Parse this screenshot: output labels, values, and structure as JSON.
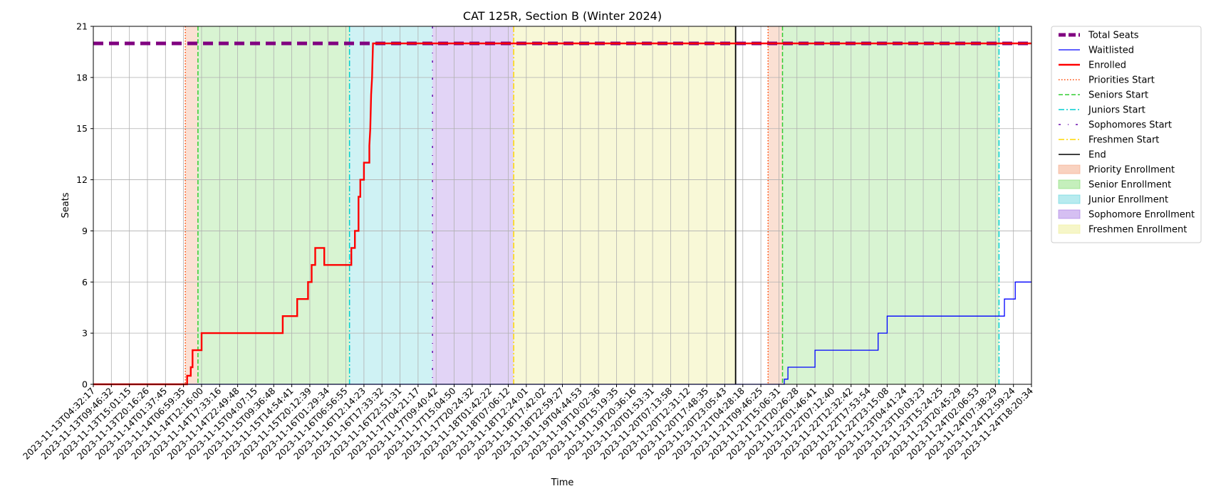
{
  "chart_data": {
    "type": "line",
    "title": "CAT 125R, Section B (Winter 2024)",
    "xlabel": "Time",
    "ylabel": "Seats",
    "ylim": [
      0,
      21
    ],
    "yticks": [
      0,
      3,
      6,
      9,
      12,
      15,
      18,
      21
    ],
    "grid": true,
    "legend_placement": "outside-right-top",
    "x_tick_labels": [
      "2023-11-13T04:32:17",
      "2023-11-13T09:46:32",
      "2023-11-13T15:01:15",
      "2023-11-13T20:16:26",
      "2023-11-14T01:37:45",
      "2023-11-14T06:59:35",
      "2023-11-14T12:16:00",
      "2023-11-14T17:33:16",
      "2023-11-14T22:49:48",
      "2023-11-15T04:07:15",
      "2023-11-15T09:36:48",
      "2023-11-15T14:54:41",
      "2023-11-15T20:12:39",
      "2023-11-16T01:29:34",
      "2023-11-16T06:56:55",
      "2023-11-16T12:14:23",
      "2023-11-16T17:33:32",
      "2023-11-16T22:51:31",
      "2023-11-17T04:21:17",
      "2023-11-17T09:40:42",
      "2023-11-17T15:04:50",
      "2023-11-17T20:24:32",
      "2023-11-18T01:42:22",
      "2023-11-18T07:06:12",
      "2023-11-18T12:24:01",
      "2023-11-18T17:42:02",
      "2023-11-18T22:59:27",
      "2023-11-19T04:44:53",
      "2023-11-19T10:02:36",
      "2023-11-19T15:19:35",
      "2023-11-19T20:36:16",
      "2023-11-20T01:53:31",
      "2023-11-20T07:13:58",
      "2023-11-20T12:31:12",
      "2023-11-20T17:48:35",
      "2023-11-20T23:05:43",
      "2023-11-21T04:28:18",
      "2023-11-21T09:46:25",
      "2023-11-21T15:06:31",
      "2023-11-21T20:26:28",
      "2023-11-22T01:46:41",
      "2023-11-22T07:12:40",
      "2023-11-22T12:32:42",
      "2023-11-22T17:53:54",
      "2023-11-22T23:15:08",
      "2023-11-23T04:41:24",
      "2023-11-23T10:03:23",
      "2023-11-23T15:24:25",
      "2023-11-23T20:45:29",
      "2023-11-24T02:06:53",
      "2023-11-24T07:38:29",
      "2023-11-24T12:59:24",
      "2023-11-24T18:20:34"
    ],
    "series": [
      {
        "name": "Total Seats",
        "color": "#800080",
        "style": "dashed-thick",
        "points": [
          [
            0,
            20
          ],
          [
            52,
            20
          ]
        ]
      },
      {
        "name": "Waitlisted",
        "color": "#0000ff",
        "style": "solid-thin",
        "points": [
          [
            0,
            0
          ],
          [
            38.3,
            0
          ],
          [
            38.3,
            0.3
          ],
          [
            38.5,
            0.3
          ],
          [
            38.5,
            1
          ],
          [
            40.0,
            1
          ],
          [
            40.0,
            2
          ],
          [
            43.5,
            2
          ],
          [
            43.5,
            3
          ],
          [
            44.0,
            3
          ],
          [
            44.0,
            4
          ],
          [
            50.5,
            4
          ],
          [
            50.5,
            5
          ],
          [
            51.1,
            5
          ],
          [
            51.1,
            6
          ],
          [
            52,
            6
          ]
        ]
      },
      {
        "name": "Enrolled",
        "color": "#ff0000",
        "style": "solid-thick",
        "points": [
          [
            0,
            0
          ],
          [
            5.2,
            0
          ],
          [
            5.2,
            0.5
          ],
          [
            5.4,
            0.5
          ],
          [
            5.4,
            1
          ],
          [
            5.5,
            1
          ],
          [
            5.5,
            2
          ],
          [
            6.0,
            2
          ],
          [
            6.0,
            3
          ],
          [
            9.5,
            3
          ],
          [
            9.6,
            3
          ],
          [
            10.5,
            3
          ],
          [
            10.5,
            4
          ],
          [
            11.3,
            4
          ],
          [
            11.3,
            5
          ],
          [
            11.9,
            5
          ],
          [
            11.9,
            6
          ],
          [
            12.1,
            6
          ],
          [
            12.1,
            7
          ],
          [
            12.3,
            7
          ],
          [
            12.3,
            8
          ],
          [
            12.8,
            8
          ],
          [
            12.8,
            7
          ],
          [
            14.3,
            7
          ],
          [
            14.3,
            8
          ],
          [
            14.5,
            8
          ],
          [
            14.5,
            9
          ],
          [
            14.7,
            9
          ],
          [
            14.7,
            11
          ],
          [
            14.8,
            11
          ],
          [
            14.8,
            12
          ],
          [
            15.0,
            12
          ],
          [
            15.0,
            13
          ],
          [
            15.3,
            13
          ],
          [
            15.3,
            14
          ],
          [
            15.35,
            15
          ],
          [
            15.4,
            17
          ],
          [
            15.45,
            18
          ],
          [
            15.5,
            20
          ],
          [
            16.2,
            20
          ],
          [
            36.0,
            20
          ],
          [
            52,
            20
          ]
        ]
      }
    ],
    "vertical_markers": [
      {
        "name": "Priorities Start",
        "color": "#ff4500",
        "style": "dotted",
        "x_values": [
          5.1,
          37.4
        ]
      },
      {
        "name": "Seniors Start",
        "color": "#32cd32",
        "style": "dashed",
        "x_values": [
          5.8,
          38.2
        ]
      },
      {
        "name": "Juniors Start",
        "color": "#00ced1",
        "style": "dashdot",
        "x_values": [
          14.2,
          50.2
        ]
      },
      {
        "name": "Sophomores Start",
        "color": "#6a0dad",
        "style": "dashdot-sparse",
        "x_values": [
          18.8
        ]
      },
      {
        "name": "Freshmen Start",
        "color": "#ffd700",
        "style": "dashdot",
        "x_values": [
          23.3
        ]
      },
      {
        "name": "End",
        "color": "#000000",
        "style": "solid",
        "x_values": [
          35.6
        ]
      }
    ],
    "regions": [
      {
        "name": "Priority Enrollment",
        "color": "#f4a582",
        "opacity": 0.35,
        "spans": [
          [
            5.1,
            5.8
          ],
          [
            37.4,
            38.2
          ]
        ]
      },
      {
        "name": "Senior Enrollment",
        "color": "#7fdb6a",
        "opacity": 0.3,
        "spans": [
          [
            5.8,
            14.2
          ],
          [
            38.2,
            50.2
          ]
        ]
      },
      {
        "name": "Junior Enrollment",
        "color": "#5fd3dc",
        "opacity": 0.3,
        "spans": [
          [
            14.2,
            18.8
          ]
        ]
      },
      {
        "name": "Sophomore Enrollment",
        "color": "#a678e3",
        "opacity": 0.32,
        "spans": [
          [
            18.8,
            23.3
          ]
        ]
      },
      {
        "name": "Freshmen Enrollment",
        "color": "#eeee9a",
        "opacity": 0.4,
        "spans": [
          [
            23.3,
            35.6
          ]
        ]
      }
    ]
  }
}
